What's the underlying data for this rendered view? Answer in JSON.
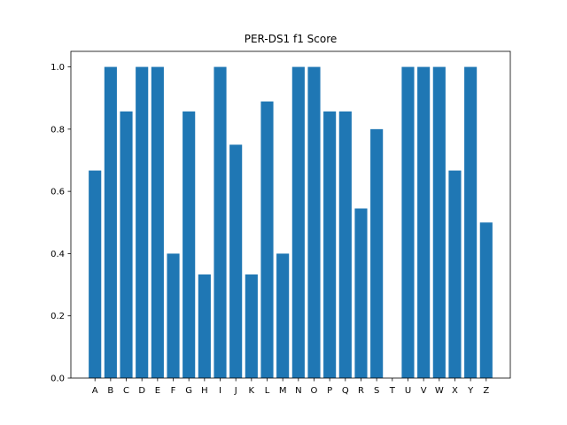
{
  "chart_data": {
    "type": "bar",
    "title": "PER-DS1 f1 Score",
    "xlabel": "",
    "ylabel": "",
    "categories": [
      "A",
      "B",
      "C",
      "D",
      "E",
      "F",
      "G",
      "H",
      "I",
      "J",
      "K",
      "L",
      "M",
      "N",
      "O",
      "P",
      "Q",
      "R",
      "S",
      "T",
      "U",
      "V",
      "W",
      "X",
      "Y",
      "Z"
    ],
    "values": [
      0.667,
      1.0,
      0.857,
      1.0,
      1.0,
      0.4,
      0.857,
      0.333,
      1.0,
      0.75,
      0.333,
      0.889,
      0.4,
      1.0,
      1.0,
      0.857,
      0.857,
      0.545,
      0.8,
      0.0,
      1.0,
      1.0,
      1.0,
      0.667,
      1.0,
      0.5
    ],
    "ylim": [
      0,
      1.05
    ],
    "yticks": [
      "0.0",
      "0.2",
      "0.4",
      "0.6",
      "0.8",
      "1.0"
    ],
    "grid": false,
    "bar_color": "#1f77b4"
  }
}
